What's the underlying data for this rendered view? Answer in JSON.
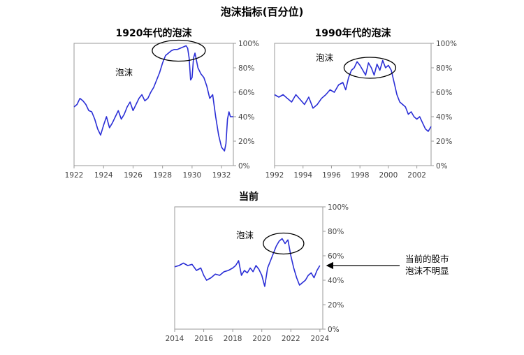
{
  "chart_data": {
    "title": "泡沫指标(百分位)",
    "panels": [
      {
        "type": "line",
        "title": "1920年代的泡沫",
        "annotation": "泡沫",
        "xlim": [
          1922,
          1932.8
        ],
        "ylim": [
          0,
          100
        ],
        "xticks": [
          "1922",
          "1924",
          "1926",
          "1928",
          "1930",
          "1932"
        ],
        "yticks": [
          "0%",
          "20%",
          "40%",
          "60%",
          "80%",
          "100%"
        ],
        "series": [
          {
            "name": "泡沫指标",
            "x": [
              1922.0,
              1922.2,
              1922.4,
              1922.6,
              1922.8,
              1923.0,
              1923.2,
              1923.4,
              1923.6,
              1923.8,
              1924.0,
              1924.2,
              1924.4,
              1924.6,
              1924.8,
              1925.0,
              1925.2,
              1925.4,
              1925.6,
              1925.8,
              1926.0,
              1926.2,
              1926.4,
              1926.6,
              1926.8,
              1927.0,
              1927.2,
              1927.4,
              1927.6,
              1927.8,
              1928.0,
              1928.2,
              1928.4,
              1928.6,
              1928.8,
              1929.0,
              1929.2,
              1929.4,
              1929.6,
              1929.7,
              1929.8,
              1929.9,
              1930.0,
              1930.1,
              1930.2,
              1930.4,
              1930.6,
              1930.8,
              1931.0,
              1931.2,
              1931.4,
              1931.6,
              1931.8,
              1932.0,
              1932.2,
              1932.3,
              1932.4,
              1932.5,
              1932.6,
              1932.8
            ],
            "values": [
              48,
              50,
              55,
              53,
              50,
              45,
              44,
              38,
              30,
              25,
              33,
              40,
              31,
              35,
              40,
              45,
              38,
              42,
              48,
              52,
              45,
              50,
              55,
              58,
              53,
              55,
              60,
              64,
              70,
              76,
              84,
              90,
              92,
              94,
              95,
              95,
              96,
              97,
              98,
              96,
              88,
              70,
              72,
              88,
              92,
              80,
              75,
              72,
              65,
              55,
              58,
              40,
              25,
              15,
              12,
              18,
              38,
              44,
              40,
              40
            ]
          }
        ]
      },
      {
        "type": "line",
        "title": "1990年代的泡沫",
        "annotation": "泡沫",
        "xlim": [
          1992,
          2003
        ],
        "ylim": [
          0,
          100
        ],
        "xticks": [
          "1992",
          "1994",
          "1996",
          "1998",
          "2000",
          "2002"
        ],
        "yticks": [
          "0%",
          "20%",
          "40%",
          "60%",
          "80%",
          "100%"
        ],
        "series": [
          {
            "name": "泡沫指标",
            "x": [
              1992.0,
              1992.3,
              1992.6,
              1992.9,
              1993.2,
              1993.5,
              1993.8,
              1994.1,
              1994.4,
              1994.7,
              1995.0,
              1995.3,
              1995.6,
              1995.9,
              1996.2,
              1996.5,
              1996.8,
              1997.0,
              1997.2,
              1997.4,
              1997.6,
              1997.8,
              1998.0,
              1998.2,
              1998.4,
              1998.6,
              1998.8,
              1999.0,
              1999.2,
              1999.4,
              1999.6,
              1999.8,
              2000.0,
              2000.2,
              2000.4,
              2000.6,
              2000.8,
              2001.0,
              2001.2,
              2001.4,
              2001.6,
              2001.8,
              2002.0,
              2002.2,
              2002.4,
              2002.6,
              2002.8,
              2003.0
            ],
            "values": [
              58,
              56,
              58,
              55,
              52,
              58,
              54,
              50,
              56,
              47,
              50,
              55,
              58,
              62,
              60,
              66,
              68,
              62,
              72,
              78,
              80,
              85,
              82,
              78,
              74,
              84,
              80,
              74,
              83,
              78,
              86,
              80,
              82,
              78,
              68,
              58,
              52,
              50,
              48,
              42,
              44,
              40,
              38,
              40,
              35,
              30,
              28,
              32
            ]
          }
        ]
      },
      {
        "type": "line",
        "title": "当前",
        "annotation": "泡沫",
        "side_note": [
          "当前的股市",
          "泡沫不明显"
        ],
        "xlim": [
          2014,
          2024.2
        ],
        "ylim": [
          0,
          100
        ],
        "xticks": [
          "2014",
          "2016",
          "2018",
          "2020",
          "2022",
          "2024"
        ],
        "yticks": [
          "0%",
          "20%",
          "40%",
          "60%",
          "80%",
          "100%"
        ],
        "series": [
          {
            "name": "泡沫指标",
            "x": [
              2014.0,
              2014.3,
              2014.6,
              2014.9,
              2015.2,
              2015.5,
              2015.8,
              2016.0,
              2016.2,
              2016.5,
              2016.8,
              2017.1,
              2017.4,
              2017.7,
              2018.0,
              2018.2,
              2018.4,
              2018.6,
              2018.8,
              2019.0,
              2019.2,
              2019.4,
              2019.6,
              2019.8,
              2020.0,
              2020.2,
              2020.4,
              2020.6,
              2020.8,
              2021.0,
              2021.2,
              2021.4,
              2021.6,
              2021.8,
              2022.0,
              2022.2,
              2022.4,
              2022.6,
              2022.8,
              2023.0,
              2023.2,
              2023.4,
              2023.6,
              2023.8,
              2024.0
            ],
            "values": [
              51,
              52,
              54,
              52,
              53,
              48,
              50,
              44,
              40,
              42,
              45,
              44,
              47,
              48,
              50,
              52,
              56,
              44,
              48,
              46,
              50,
              47,
              52,
              49,
              44,
              35,
              50,
              56,
              62,
              68,
              72,
              74,
              70,
              73,
              60,
              50,
              42,
              36,
              38,
              40,
              44,
              46,
              42,
              48,
              52
            ]
          }
        ]
      }
    ]
  }
}
